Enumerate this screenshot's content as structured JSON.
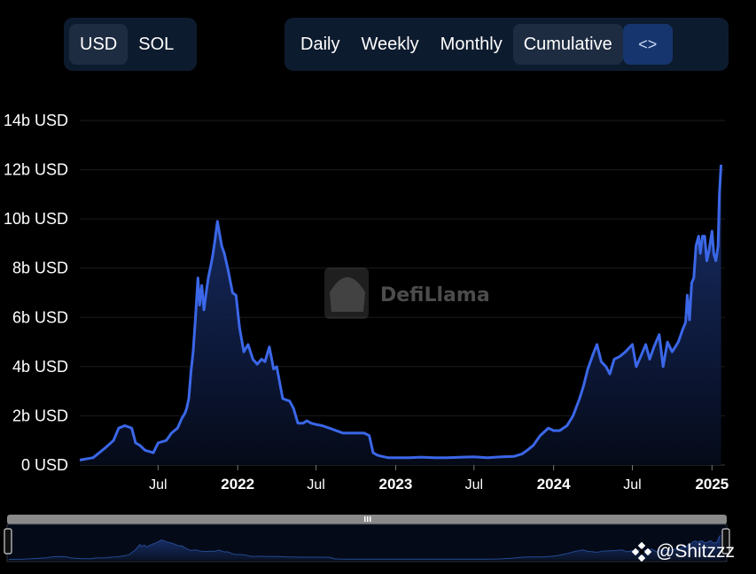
{
  "toolbar": {
    "currency": [
      {
        "label": "USD",
        "active": true
      },
      {
        "label": "SOL",
        "active": false
      }
    ],
    "range": [
      {
        "label": "Daily",
        "active": false
      },
      {
        "label": "Weekly",
        "active": false
      },
      {
        "label": "Monthly",
        "active": false
      },
      {
        "label": "Cumulative",
        "active": true
      }
    ],
    "embed_icon": "code-brackets-icon",
    "embed_label": "<>"
  },
  "watermark": {
    "text": "DefiLlama",
    "icon": "llama-logo-icon"
  },
  "credit": {
    "text": "@Shitzzz",
    "icon": "binance-logo-icon"
  },
  "colors": {
    "line": "#3b67e8",
    "fill_top": "#1c3578",
    "fill_bottom": "#050a18",
    "panel": "#0d1b2e",
    "active": "#1e2c42",
    "embed": "#16356e"
  },
  "chart_data": {
    "type": "area",
    "title": "",
    "xlabel": "",
    "ylabel": "",
    "y_unit": "b USD",
    "ylim": [
      0,
      14
    ],
    "yticks": [
      "0 USD",
      "2b USD",
      "4b USD",
      "6b USD",
      "8b USD",
      "10b USD",
      "12b USD",
      "14b USD"
    ],
    "xlim": [
      "2021-01-01",
      "2025-01-31"
    ],
    "xticks": [
      {
        "label": "Jul",
        "date": "2021-07-01",
        "bold": false
      },
      {
        "label": "2022",
        "date": "2022-01-01",
        "bold": true
      },
      {
        "label": "Jul",
        "date": "2022-07-01",
        "bold": false
      },
      {
        "label": "2023",
        "date": "2023-01-01",
        "bold": true
      },
      {
        "label": "Jul",
        "date": "2023-07-01",
        "bold": false
      },
      {
        "label": "2024",
        "date": "2024-01-01",
        "bold": true
      },
      {
        "label": "Jul",
        "date": "2024-07-01",
        "bold": false
      },
      {
        "label": "2025",
        "date": "2025-01-01",
        "bold": true
      }
    ],
    "grid": true,
    "legend": "none",
    "series": [
      {
        "x": [
          "2021-01-01",
          "2021-02-01",
          "2021-03-01",
          "2021-03-20",
          "2021-04-01",
          "2021-04-15",
          "2021-05-01",
          "2021-05-10",
          "2021-05-20",
          "2021-06-01",
          "2021-06-20",
          "2021-07-01",
          "2021-07-20",
          "2021-08-01",
          "2021-08-15",
          "2021-08-25",
          "2021-09-01",
          "2021-09-05",
          "2021-09-10",
          "2021-09-15",
          "2021-09-20",
          "2021-09-25",
          "2021-10-01",
          "2021-10-05",
          "2021-10-10",
          "2021-10-15",
          "2021-10-20",
          "2021-10-25",
          "2021-11-01",
          "2021-11-05",
          "2021-11-10",
          "2021-11-15",
          "2021-11-20",
          "2021-11-25",
          "2021-12-01",
          "2021-12-10",
          "2021-12-20",
          "2021-12-28",
          "2022-01-05",
          "2022-01-15",
          "2022-01-25",
          "2022-02-05",
          "2022-02-15",
          "2022-02-25",
          "2022-03-05",
          "2022-03-15",
          "2022-03-25",
          "2022-04-01",
          "2022-04-15",
          "2022-05-01",
          "2022-05-10",
          "2022-05-20",
          "2022-06-01",
          "2022-06-10",
          "2022-06-20",
          "2022-07-01",
          "2022-07-15",
          "2022-08-01",
          "2022-09-01",
          "2022-10-01",
          "2022-10-20",
          "2022-11-01",
          "2022-11-10",
          "2022-11-20",
          "2022-12-01",
          "2022-12-15",
          "2023-01-01",
          "2023-02-01",
          "2023-03-01",
          "2023-04-01",
          "2023-05-01",
          "2023-06-01",
          "2023-07-01",
          "2023-08-01",
          "2023-09-01",
          "2023-10-01",
          "2023-10-20",
          "2023-11-01",
          "2023-11-15",
          "2023-12-01",
          "2023-12-20",
          "2024-01-01",
          "2024-01-15",
          "2024-02-01",
          "2024-02-15",
          "2024-03-01",
          "2024-03-10",
          "2024-03-20",
          "2024-04-01",
          "2024-04-10",
          "2024-04-20",
          "2024-05-01",
          "2024-05-10",
          "2024-05-20",
          "2024-06-01",
          "2024-06-15",
          "2024-07-01",
          "2024-07-10",
          "2024-07-20",
          "2024-08-01",
          "2024-08-10",
          "2024-08-20",
          "2024-09-01",
          "2024-09-10",
          "2024-09-20",
          "2024-10-01",
          "2024-10-15",
          "2024-10-25",
          "2024-11-01",
          "2024-11-05",
          "2024-11-10",
          "2024-11-15",
          "2024-11-20",
          "2024-11-25",
          "2024-12-01",
          "2024-12-05",
          "2024-12-10",
          "2024-12-15",
          "2024-12-20",
          "2024-12-25",
          "2025-01-01",
          "2025-01-05",
          "2025-01-10",
          "2025-01-15",
          "2025-01-18",
          "2025-01-22"
        ],
        "y": [
          0.2,
          0.3,
          0.7,
          1.0,
          1.5,
          1.6,
          1.5,
          0.9,
          0.8,
          0.6,
          0.5,
          0.9,
          1.0,
          1.3,
          1.5,
          1.9,
          2.1,
          2.3,
          2.7,
          3.8,
          4.6,
          5.9,
          7.6,
          6.5,
          7.3,
          6.3,
          7.0,
          7.6,
          8.2,
          8.6,
          9.2,
          9.9,
          9.4,
          8.9,
          8.6,
          7.9,
          7.0,
          6.9,
          5.6,
          4.6,
          4.9,
          4.3,
          4.1,
          4.3,
          4.2,
          4.8,
          3.9,
          4.0,
          2.7,
          2.6,
          2.3,
          1.7,
          1.7,
          1.8,
          1.7,
          1.65,
          1.6,
          1.5,
          1.3,
          1.3,
          1.3,
          1.2,
          0.5,
          0.4,
          0.35,
          0.3,
          0.3,
          0.3,
          0.32,
          0.3,
          0.3,
          0.32,
          0.33,
          0.3,
          0.33,
          0.35,
          0.45,
          0.6,
          0.8,
          1.2,
          1.5,
          1.4,
          1.4,
          1.6,
          2.0,
          2.7,
          3.2,
          3.9,
          4.5,
          4.9,
          4.2,
          4.0,
          3.7,
          4.3,
          4.4,
          4.6,
          4.9,
          4.0,
          4.4,
          4.9,
          4.3,
          4.8,
          5.3,
          4.0,
          5.0,
          4.6,
          5.0,
          5.5,
          5.8,
          6.9,
          5.9,
          7.4,
          7.6,
          8.9,
          9.3,
          8.6,
          9.3,
          9.3,
          8.3,
          8.7,
          9.5,
          8.6,
          8.3,
          8.9,
          11.0,
          12.2
        ]
      }
    ]
  }
}
